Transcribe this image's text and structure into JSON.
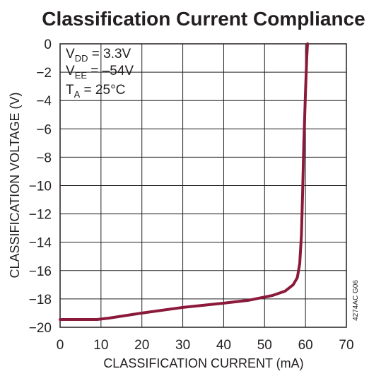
{
  "chart_data": {
    "type": "line",
    "title": "Classification Current Compliance",
    "xlabel": "CLASSIFICATION CURRENT (mA)",
    "ylabel": "CLASSIFICATION VOLTAGE (V)",
    "xlim": [
      0,
      70
    ],
    "ylim": [
      -20,
      0
    ],
    "xticks": [
      "0",
      "10",
      "20",
      "30",
      "40",
      "50",
      "60",
      "70"
    ],
    "yticks": [
      "0",
      "−2",
      "−4",
      "−6",
      "−8",
      "−10",
      "−12",
      "−14",
      "−16",
      "−18",
      "−20"
    ],
    "grid": true,
    "annotations": [
      {
        "main": "V",
        "sub": "DD",
        "rest": " = 3.3V"
      },
      {
        "main": "V",
        "sub": "EE",
        "rest": " = –54V"
      },
      {
        "main": "T",
        "sub": "A",
        "rest": " = 25°C"
      }
    ],
    "side_label": "4274AC G06",
    "line_color": "#8b1a3a",
    "series": [
      {
        "x": [
          0,
          5,
          9,
          12,
          20,
          30,
          40,
          46,
          52,
          55,
          57,
          58,
          58.6,
          59,
          59.3,
          59.6,
          60,
          60.3,
          60.5
        ],
        "y": [
          -19.45,
          -19.45,
          -19.45,
          -19.35,
          -19.0,
          -18.6,
          -18.3,
          -18.1,
          -17.75,
          -17.45,
          -17.0,
          -16.5,
          -15.5,
          -13.5,
          -10.5,
          -7.0,
          -3.5,
          -1.0,
          0
        ]
      }
    ]
  }
}
